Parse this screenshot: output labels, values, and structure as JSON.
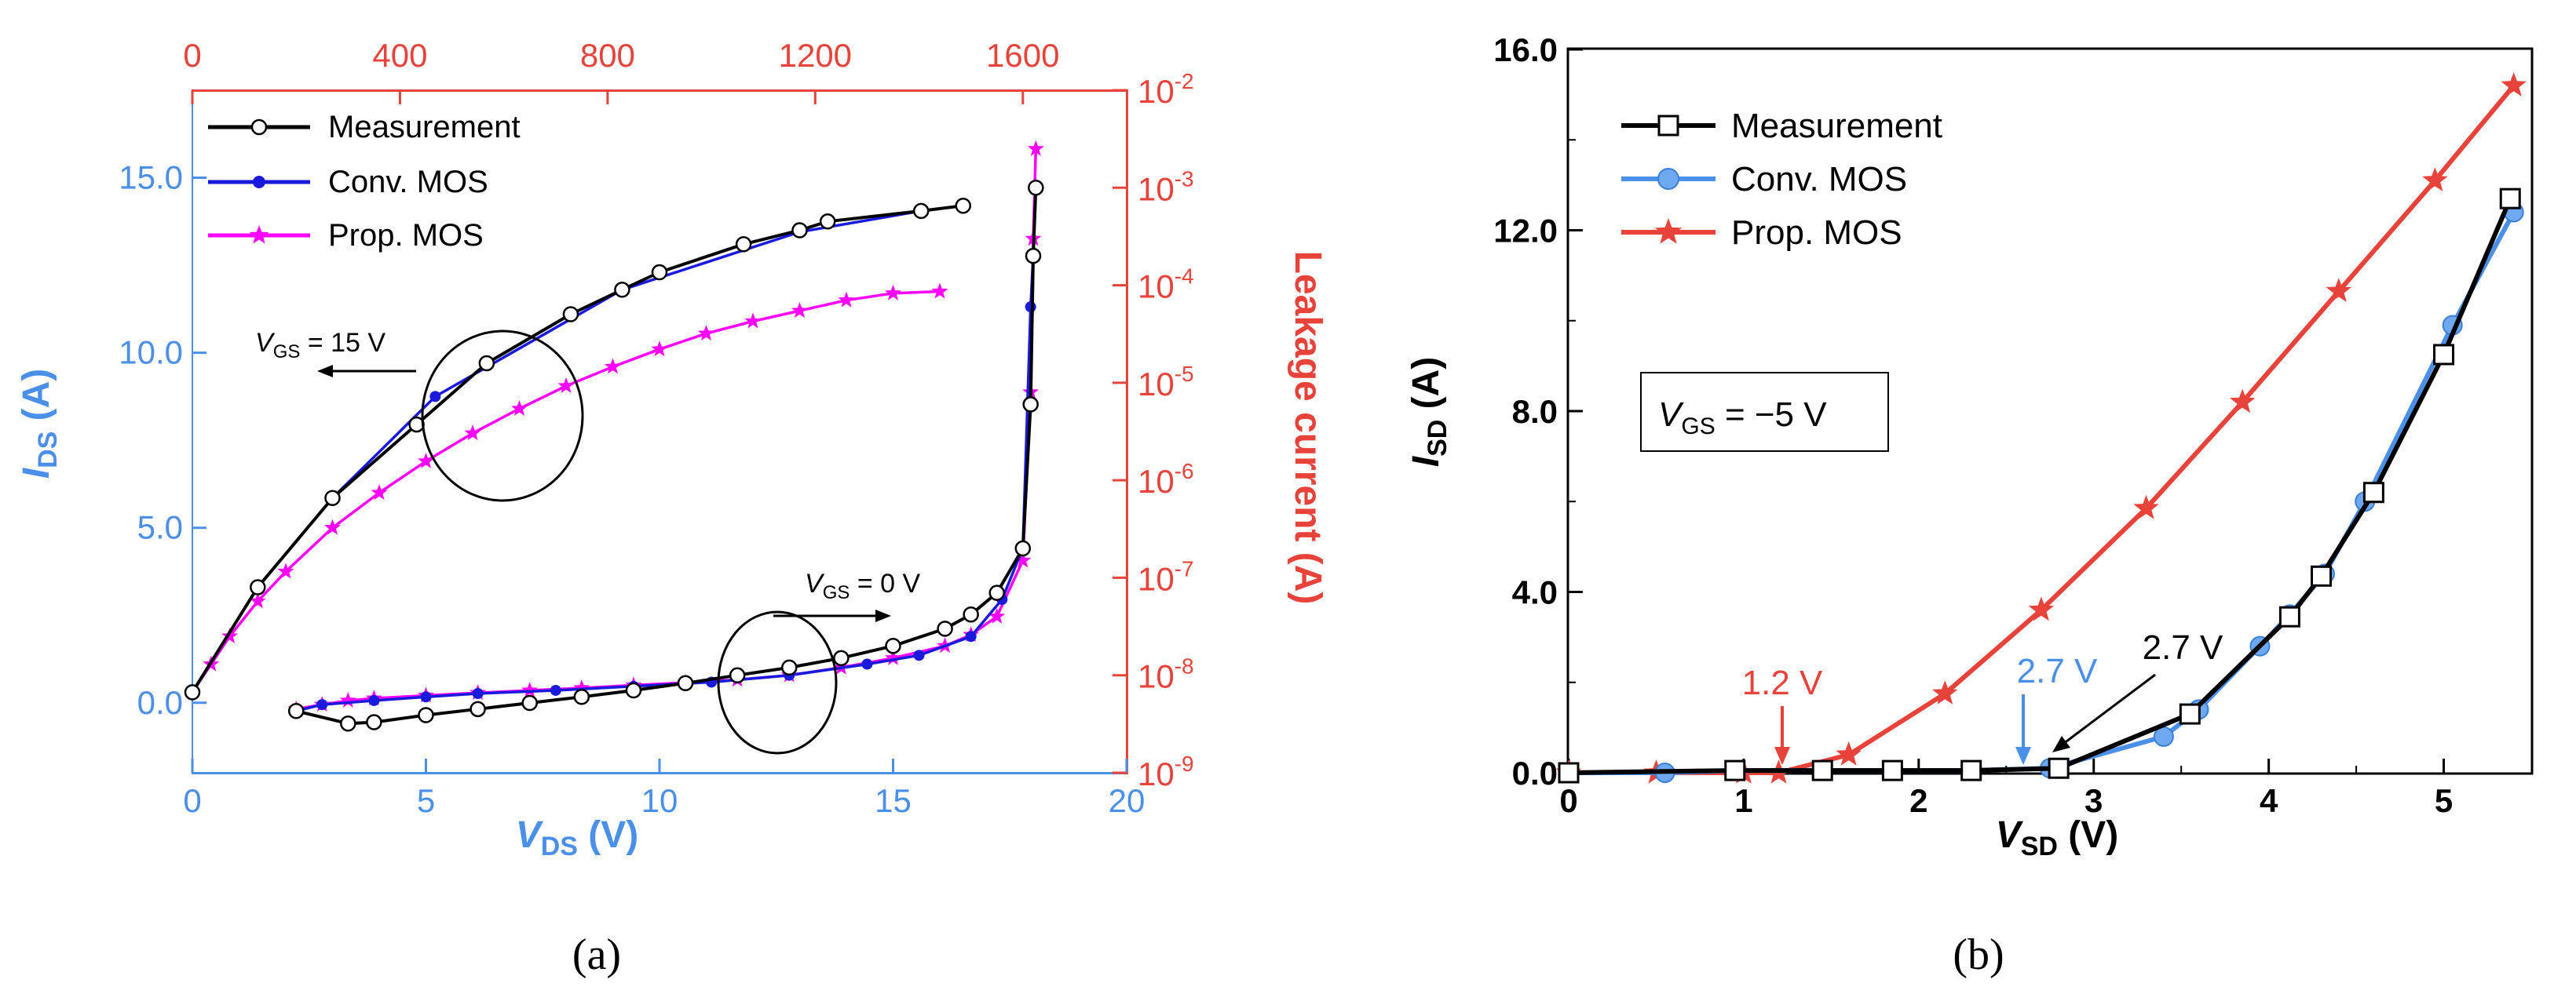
{
  "colors": {
    "measurement": "#000000",
    "conv": "#1a1adc",
    "prop": "#ff00ff",
    "blue_axis": "#4a8fe8",
    "red_axis": "#e8433a",
    "b_conv": "#4a8fe8",
    "b_prop": "#e8433a"
  },
  "panel_a": {
    "caption": "(a)",
    "xlabel": "V",
    "xlabel_sub": "DS",
    "xlabel_unit": " (V)",
    "ylabel": "I",
    "ylabel_sub": "DS",
    "ylabel_unit": " (A)",
    "y2label": "Leakage current (A)",
    "annot_15": {
      "v": "V",
      "sub": "GS",
      "rest": " = 15 V"
    },
    "annot_0": {
      "v": "V",
      "sub": "GS",
      "rest": " = 0 V"
    },
    "legend": [
      "Measurement",
      "Conv. MOS",
      "Prop. MOS"
    ]
  },
  "panel_b": {
    "caption": "(b)",
    "xlabel": "V",
    "xlabel_sub": "SD",
    "xlabel_unit": " (V)",
    "ylabel": "I",
    "ylabel_sub": "SD",
    "ylabel_unit": " (A)",
    "box": {
      "v": "V",
      "sub": "GS",
      "rest": " = −5 V"
    },
    "annot_red": "1.2 V",
    "annot_blue": "2.7 V",
    "annot_black": "2.7 V",
    "legend": [
      "Measurement",
      "Conv. MOS",
      "Prop. MOS"
    ]
  },
  "chart_data": [
    {
      "type": "line",
      "panel": "a",
      "x_bottom": {
        "label": "VDS (V)",
        "range": [
          0,
          20
        ],
        "ticks": [
          0,
          5,
          10,
          15,
          20
        ]
      },
      "y_left": {
        "label": "IDS (A)",
        "range": [
          -2,
          17.5
        ],
        "ticks": [
          0.0,
          5.0,
          10.0,
          15.0
        ],
        "tick_labels": [
          "0.0",
          "5.0",
          "10.0",
          "15.0"
        ]
      },
      "x_top": {
        "range": [
          0,
          1800
        ],
        "ticks": [
          0,
          400,
          800,
          1200,
          1600
        ]
      },
      "y_right": {
        "label": "Leakage current (A)",
        "scale": "log",
        "range": [
          1e-09,
          0.01
        ],
        "ticks": [
          -9,
          -8,
          -7,
          -6,
          -5,
          -4,
          -3,
          -2
        ]
      },
      "series": [
        {
          "name": "Measurement",
          "group": "VGS = 15 V",
          "x": [
            0,
            1.4,
            3.0,
            4.8,
            6.3,
            8.1,
            9.2,
            10.0,
            11.8,
            13.0,
            13.6,
            15.6,
            16.5
          ],
          "y": [
            0.3,
            3.3,
            5.85,
            7.95,
            9.7,
            11.1,
            11.8,
            12.3,
            13.1,
            13.5,
            13.75,
            14.05,
            14.2
          ]
        },
        {
          "name": "Conv. MOS",
          "group": "VGS = 15 V",
          "x": [
            0,
            1.4,
            3.0,
            5.2,
            9.2,
            13.0,
            15.6,
            16.5
          ],
          "y": [
            0.3,
            3.3,
            5.85,
            8.75,
            11.8,
            13.45,
            14.05,
            14.2
          ]
        },
        {
          "name": "Prop. MOS",
          "group": "VGS = 15 V",
          "x": [
            0,
            0.4,
            0.8,
            1.4,
            2.0,
            3.0,
            4.0,
            5.0,
            6.0,
            7.0,
            8.0,
            9.0,
            10.0,
            11.0,
            12.0,
            13.0,
            14.0,
            15.0,
            16.0
          ],
          "y": [
            0.3,
            1.1,
            1.9,
            2.9,
            3.75,
            5.0,
            6.0,
            6.9,
            7.7,
            8.4,
            9.05,
            9.6,
            10.1,
            10.55,
            10.9,
            11.2,
            11.5,
            11.7,
            11.75
          ]
        },
        {
          "name": "Measurement",
          "group": "VGS = 0 V",
          "axes": "top-right",
          "x": [
            200,
            300,
            350,
            450,
            550,
            650,
            750,
            850,
            950,
            1050,
            1150,
            1250,
            1350,
            1450,
            1500,
            1550,
            1600,
            1615,
            1620,
            1625
          ],
          "y": [
            4.3e-09,
            3.2e-09,
            3.3e-09,
            3.9e-09,
            4.5e-09,
            5.2e-09,
            6e-09,
            7e-09,
            8.3e-09,
            1e-08,
            1.2e-08,
            1.5e-08,
            2e-08,
            3e-08,
            4.2e-08,
            7e-08,
            2e-07,
            6e-06,
            0.0002,
            0.001
          ]
        },
        {
          "name": "Conv. MOS",
          "group": "VGS = 0 V",
          "axes": "top-right",
          "x": [
            200,
            250,
            350,
            450,
            550,
            700,
            850,
            1000,
            1150,
            1300,
            1400,
            1500,
            1560,
            1600,
            1615,
            1620,
            1625
          ],
          "y": [
            4.3e-09,
            5e-09,
            5.5e-09,
            6e-09,
            6.5e-09,
            7e-09,
            7.7e-09,
            8.5e-09,
            1e-08,
            1.3e-08,
            1.6e-08,
            2.5e-08,
            6e-08,
            2e-07,
            6e-05,
            0.0002,
            0.001
          ]
        },
        {
          "name": "Prop. MOS",
          "group": "VGS = 0 V",
          "axes": "top-right",
          "x": [
            200,
            250,
            300,
            350,
            450,
            550,
            650,
            750,
            850,
            950,
            1050,
            1150,
            1250,
            1350,
            1450,
            1500,
            1550,
            1600,
            1615,
            1620,
            1625
          ],
          "y": [
            4.5e-09,
            5e-09,
            5.5e-09,
            5.8e-09,
            6.2e-09,
            6.6e-09,
            7e-09,
            7.4e-09,
            7.9e-09,
            8.4e-09,
            9e-09,
            1e-08,
            1.2e-08,
            1.5e-08,
            2e-08,
            2.6e-08,
            4e-08,
            1.5e-07,
            8e-06,
            0.0003,
            0.0025
          ]
        }
      ]
    },
    {
      "type": "line",
      "panel": "b",
      "x": {
        "label": "VSD (V)",
        "range": [
          0,
          5.5
        ],
        "ticks": [
          0,
          1,
          2,
          3,
          4,
          5
        ]
      },
      "y": {
        "label": "ISD (A)",
        "range": [
          0,
          16.0
        ],
        "ticks": [
          0.0,
          4.0,
          8.0,
          12.0,
          16.0
        ],
        "tick_labels": [
          "0.0",
          "4.0",
          "8.0",
          "12.0",
          "16.0"
        ]
      },
      "series": [
        {
          "name": "Measurement",
          "x": [
            0,
            0.95,
            1.45,
            1.85,
            2.3,
            2.8,
            3.55,
            4.12,
            4.3,
            4.6,
            5.0,
            5.38
          ],
          "y": [
            0,
            0.05,
            0.05,
            0.05,
            0.05,
            0.1,
            1.3,
            3.45,
            4.35,
            6.2,
            9.25,
            12.7
          ]
        },
        {
          "name": "Conv. MOS",
          "x": [
            0,
            0.55,
            0.95,
            1.45,
            1.85,
            2.3,
            2.75,
            3.4,
            3.6,
            3.95,
            4.12,
            4.32,
            4.55,
            5.05,
            5.4
          ],
          "y": [
            0,
            0,
            0.05,
            0.05,
            0.05,
            0.05,
            0.1,
            0.8,
            1.4,
            2.8,
            3.5,
            4.4,
            6.0,
            9.9,
            12.4
          ]
        },
        {
          "name": "Prop. MOS",
          "x": [
            0,
            0.5,
            1.0,
            1.2,
            1.6,
            2.15,
            2.7,
            3.3,
            3.85,
            4.4,
            4.95,
            5.4
          ],
          "y": [
            0,
            0,
            0,
            0,
            0.4,
            1.75,
            3.6,
            5.85,
            8.2,
            10.65,
            13.1,
            15.2
          ]
        }
      ]
    }
  ]
}
